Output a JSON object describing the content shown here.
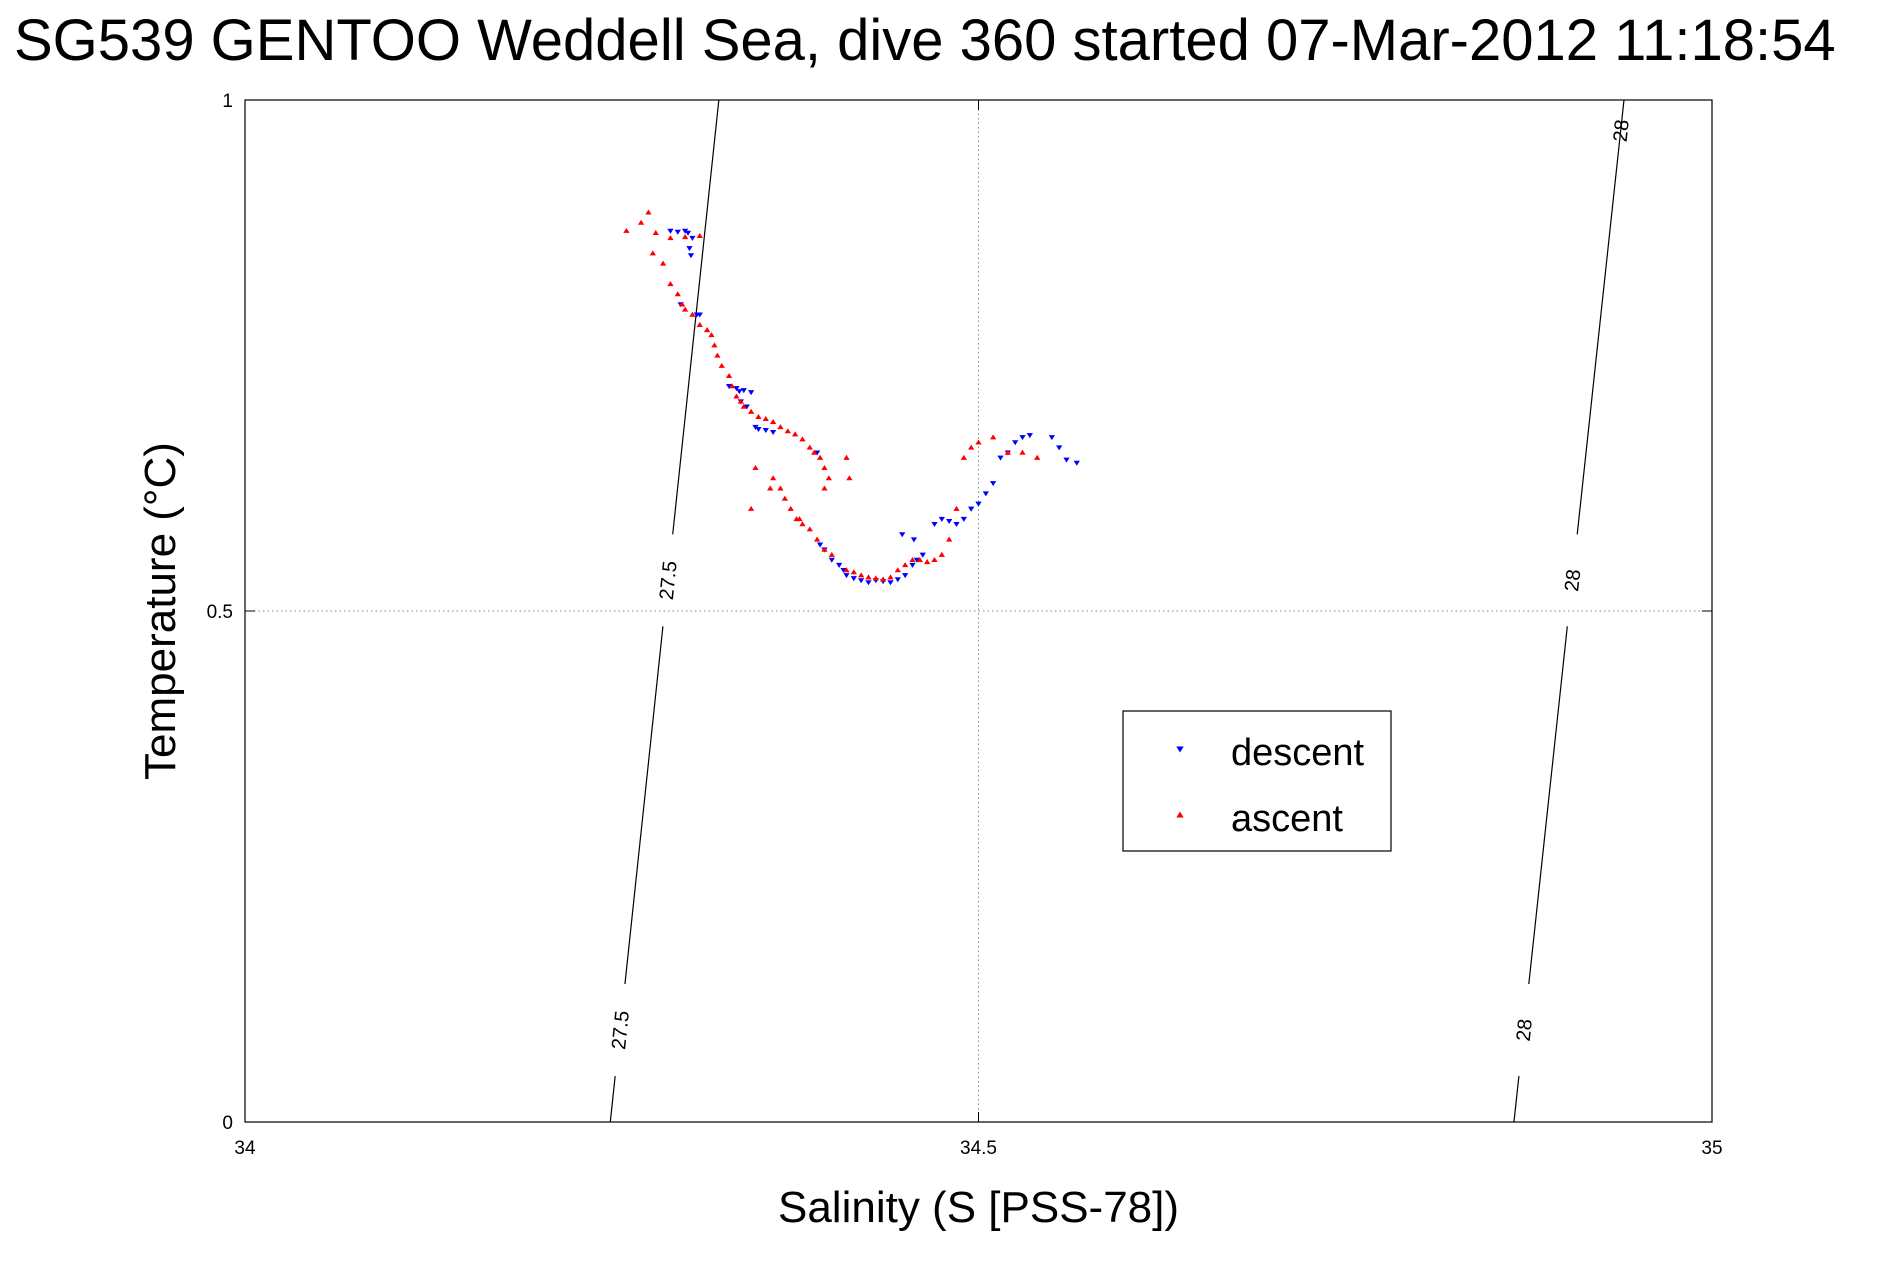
{
  "chart_data": {
    "type": "scatter",
    "title": "SG539 GENTOO Weddell Sea, dive 360 started 07-Mar-2012 11:18:54",
    "xlabel": "Salinity (S [PSS-78])",
    "ylabel": "Temperature (°C)",
    "xlim": [
      34,
      35
    ],
    "ylim": [
      0,
      1
    ],
    "xticks": [
      34,
      34.5,
      35
    ],
    "yticks": [
      0,
      0.5,
      1
    ],
    "xtick_labels": [
      "34",
      "34.5",
      "35"
    ],
    "ytick_labels": [
      "0",
      "0.5",
      "1"
    ],
    "grid": true,
    "legend": {
      "position": "center-right",
      "entries": [
        "descent",
        "ascent"
      ]
    },
    "colors": {
      "descent": "#0000ff",
      "ascent": "#ff0000",
      "contour": "#000000",
      "grid": "#888888"
    },
    "contours": [
      {
        "label": "27.5",
        "x_at_y0": 34.249,
        "x_at_y1": 34.323,
        "labels_at": [
          {
            "text": "27.5",
            "y": 0.09
          },
          {
            "text": "27.5",
            "y": 0.53
          }
        ]
      },
      {
        "label": "28",
        "x_at_y0": 34.865,
        "x_at_y1": 34.94,
        "labels_at": [
          {
            "text": "28",
            "y": 0.09
          },
          {
            "text": "28",
            "y": 0.53
          },
          {
            "text": "28",
            "y": 0.97
          }
        ]
      }
    ],
    "series": [
      {
        "name": "descent",
        "marker": "triangle-down",
        "x": [
          34.29,
          34.295,
          34.3,
          34.302,
          34.305,
          34.303,
          34.304,
          34.297,
          34.308,
          34.31,
          34.33,
          34.335,
          34.337,
          34.34,
          34.345,
          34.338,
          34.342,
          34.348,
          34.35,
          34.355,
          34.36,
          34.39,
          34.392,
          34.395,
          34.4,
          34.405,
          34.408,
          34.41,
          34.415,
          34.42,
          34.425,
          34.43,
          34.435,
          34.44,
          34.445,
          34.45,
          34.455,
          34.458,
          34.462,
          34.448,
          34.456,
          34.47,
          34.475,
          34.48,
          34.485,
          34.49,
          34.495,
          34.5,
          34.505,
          34.51,
          34.515,
          34.52,
          34.525,
          34.53,
          34.535,
          34.55,
          34.555,
          34.56,
          34.567
        ],
        "y": [
          0.872,
          0.871,
          0.872,
          0.87,
          0.865,
          0.855,
          0.848,
          0.8,
          0.79,
          0.79,
          0.72,
          0.718,
          0.715,
          0.716,
          0.714,
          0.705,
          0.7,
          0.68,
          0.678,
          0.677,
          0.675,
          0.655,
          0.565,
          0.56,
          0.55,
          0.545,
          0.54,
          0.535,
          0.532,
          0.53,
          0.528,
          0.53,
          0.529,
          0.528,
          0.531,
          0.535,
          0.545,
          0.55,
          0.555,
          0.575,
          0.57,
          0.585,
          0.59,
          0.588,
          0.585,
          0.59,
          0.6,
          0.605,
          0.615,
          0.625,
          0.65,
          0.655,
          0.665,
          0.67,
          0.672,
          0.67,
          0.66,
          0.648,
          0.645
        ],
        "y2": []
      },
      {
        "name": "ascent",
        "marker": "triangle-up",
        "x": [
          34.26,
          34.27,
          34.275,
          34.28,
          34.29,
          34.3,
          34.31,
          34.285,
          34.278,
          34.29,
          34.295,
          34.298,
          34.3,
          34.305,
          34.31,
          34.315,
          34.318,
          34.32,
          34.322,
          34.325,
          34.33,
          34.332,
          34.335,
          34.338,
          34.34,
          34.345,
          34.35,
          34.355,
          34.36,
          34.365,
          34.37,
          34.375,
          34.38,
          34.385,
          34.388,
          34.392,
          34.395,
          34.398,
          34.36,
          34.365,
          34.368,
          34.372,
          34.376,
          34.38,
          34.385,
          34.39,
          34.395,
          34.4,
          34.41,
          34.415,
          34.42,
          34.425,
          34.43,
          34.435,
          34.44,
          34.445,
          34.45,
          34.455,
          34.46,
          34.465,
          34.47,
          34.475,
          34.48,
          34.485,
          34.49,
          34.495,
          34.5,
          34.51,
          34.52,
          34.53,
          34.54,
          34.41,
          34.412,
          34.395,
          34.378,
          34.358,
          34.348,
          34.345
        ],
        "y": [
          0.872,
          0.88,
          0.89,
          0.87,
          0.865,
          0.866,
          0.867,
          0.84,
          0.85,
          0.82,
          0.81,
          0.8,
          0.795,
          0.79,
          0.78,
          0.775,
          0.77,
          0.76,
          0.75,
          0.74,
          0.73,
          0.72,
          0.71,
          0.705,
          0.7,
          0.695,
          0.69,
          0.688,
          0.685,
          0.68,
          0.676,
          0.673,
          0.668,
          0.66,
          0.655,
          0.65,
          0.64,
          0.63,
          0.63,
          0.62,
          0.61,
          0.6,
          0.59,
          0.585,
          0.58,
          0.57,
          0.56,
          0.555,
          0.54,
          0.538,
          0.535,
          0.533,
          0.532,
          0.531,
          0.533,
          0.54,
          0.545,
          0.55,
          0.55,
          0.548,
          0.55,
          0.555,
          0.57,
          0.6,
          0.65,
          0.66,
          0.665,
          0.67,
          0.655,
          0.655,
          0.65,
          0.65,
          0.63,
          0.62,
          0.59,
          0.62,
          0.64,
          0.6
        ]
      }
    ]
  }
}
